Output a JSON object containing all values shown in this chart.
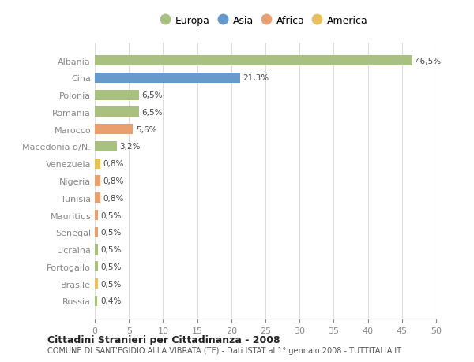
{
  "categories": [
    "Albania",
    "Cina",
    "Polonia",
    "Romania",
    "Marocco",
    "Macedonia d/N.",
    "Venezuela",
    "Nigeria",
    "Tunisia",
    "Mauritius",
    "Senegal",
    "Ucraina",
    "Portogallo",
    "Brasile",
    "Russia"
  ],
  "values": [
    46.5,
    21.3,
    6.5,
    6.5,
    5.6,
    3.2,
    0.8,
    0.8,
    0.8,
    0.5,
    0.5,
    0.5,
    0.5,
    0.5,
    0.4
  ],
  "labels": [
    "46,5%",
    "21,3%",
    "6,5%",
    "6,5%",
    "5,6%",
    "3,2%",
    "0,8%",
    "0,8%",
    "0,8%",
    "0,5%",
    "0,5%",
    "0,5%",
    "0,5%",
    "0,5%",
    "0,4%"
  ],
  "colors": [
    "#a8c080",
    "#6699cc",
    "#a8c080",
    "#a8c080",
    "#e8a070",
    "#a8c080",
    "#e8c060",
    "#e8a070",
    "#e8a070",
    "#e8a070",
    "#e8a070",
    "#a8c080",
    "#a8c080",
    "#e8c060",
    "#a8c080"
  ],
  "legend": [
    {
      "label": "Europa",
      "color": "#a8c080"
    },
    {
      "label": "Asia",
      "color": "#6699cc"
    },
    {
      "label": "Africa",
      "color": "#e8a070"
    },
    {
      "label": "America",
      "color": "#e8c060"
    }
  ],
  "xlim": [
    0,
    50
  ],
  "xticks": [
    0,
    5,
    10,
    15,
    20,
    25,
    30,
    35,
    40,
    45,
    50
  ],
  "title": "Cittadini Stranieri per Cittadinanza - 2008",
  "subtitle": "COMUNE DI SANT'EGIDIO ALLA VIBRATA (TE) - Dati ISTAT al 1° gennaio 2008 - TUTTITALIA.IT",
  "background_color": "#ffffff",
  "grid_color": "#dddddd"
}
